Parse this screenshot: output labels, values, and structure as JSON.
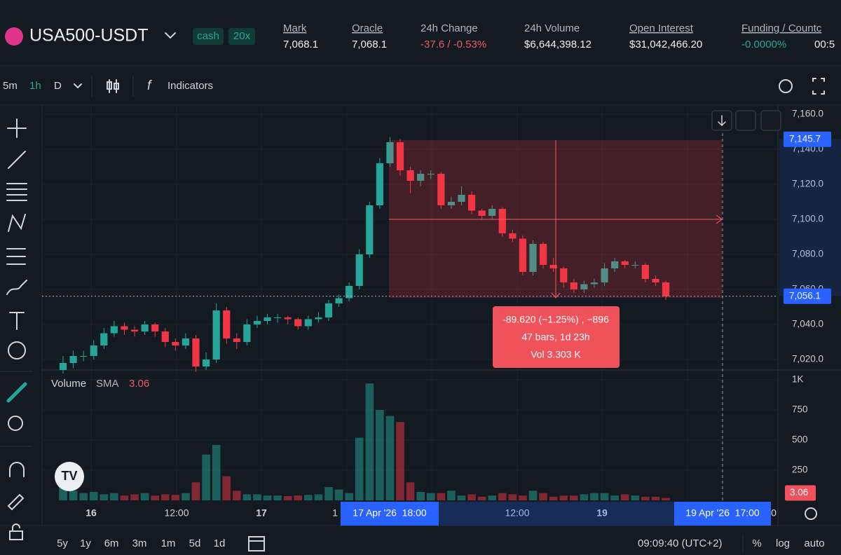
{
  "header": {
    "symbol": "USA500-USDT",
    "tags": [
      "cash",
      "20x"
    ],
    "stats": [
      {
        "label": "Mark",
        "value": "7,068.1"
      },
      {
        "label": "Oracle",
        "value": "7,068.1"
      },
      {
        "label": "24h Change",
        "value": "-37.6 / -0.53%"
      },
      {
        "label": "24h Volume",
        "value": "$6,644,398.12"
      },
      {
        "label": "Open Interest",
        "value": "$31,042,466.20"
      },
      {
        "label": "Funding / Countc",
        "value": "-0.0000%",
        "extra": "00:5"
      }
    ]
  },
  "toolbar": {
    "intervals": [
      "5m",
      "1h",
      "D"
    ],
    "indicators": "Indicators"
  },
  "chart": {
    "type": "candlestick",
    "ylim": [
      7014,
      7168
    ],
    "yticks": [
      {
        "value": 7160,
        "label": "7,160.0"
      },
      {
        "value": 7140,
        "label": "7,140.0"
      },
      {
        "value": 7120,
        "label": "7,120.0"
      },
      {
        "value": 7100,
        "label": "7,100.0"
      },
      {
        "value": 7080,
        "label": "7,080.0"
      },
      {
        "value": 7060,
        "label": "7,060.0"
      },
      {
        "value": 7040,
        "label": "7,040.0"
      },
      {
        "value": 7020,
        "label": "7,020.0"
      }
    ],
    "price_markers": [
      {
        "value": 7145.7,
        "label": "7,145.7",
        "color": "#2962ff"
      },
      {
        "value": 7056.1,
        "label": "7,056.1",
        "color": "#2962ff"
      }
    ],
    "up_color": "#26a69a",
    "down_color": "#f23645",
    "candles": [
      [
        7014,
        7022,
        7012,
        7018
      ],
      [
        7018,
        7025,
        7015,
        7022
      ],
      [
        7022,
        7025,
        7019,
        7022
      ],
      [
        7022,
        7031,
        7020,
        7028
      ],
      [
        7028,
        7038,
        7026,
        7035
      ],
      [
        7035,
        7042,
        7033,
        7039
      ],
      [
        7039,
        7041,
        7034,
        7037
      ],
      [
        7037,
        7039,
        7033,
        7036
      ],
      [
        7036,
        7042,
        7034,
        7040
      ],
      [
        7040,
        7041,
        7033,
        7036
      ],
      [
        7036,
        7038,
        7027,
        7030
      ],
      [
        7030,
        7032,
        7025,
        7028
      ],
      [
        7028,
        7035,
        7026,
        7032
      ],
      [
        7032,
        7034,
        7013,
        7016
      ],
      [
        7016,
        7024,
        7014,
        7020
      ],
      [
        7020,
        7052,
        7018,
        7048
      ],
      [
        7048,
        7050,
        7029,
        7032
      ],
      [
        7032,
        7035,
        7026,
        7030
      ],
      [
        7030,
        7043,
        7028,
        7040
      ],
      [
        7040,
        7045,
        7038,
        7042
      ],
      [
        7042,
        7046,
        7040,
        7044
      ],
      [
        7044,
        7046,
        7041,
        7044
      ],
      [
        7044,
        7045,
        7040,
        7043
      ],
      [
        7043,
        7044,
        7037,
        7039
      ],
      [
        7039,
        7045,
        7037,
        7043
      ],
      [
        7043,
        7047,
        7041,
        7044
      ],
      [
        7044,
        7054,
        7042,
        7052
      ],
      [
        7052,
        7057,
        7050,
        7055
      ],
      [
        7055,
        7064,
        7053,
        7062
      ],
      [
        7062,
        7083,
        7060,
        7080
      ],
      [
        7080,
        7110,
        7078,
        7108
      ],
      [
        7108,
        7135,
        7106,
        7132
      ],
      [
        7132,
        7147,
        7130,
        7144
      ],
      [
        7144,
        7146,
        7125,
        7128
      ],
      [
        7128,
        7130,
        7115,
        7122
      ],
      [
        7122,
        7128,
        7119,
        7126
      ],
      [
        7126,
        7128,
        7123,
        7126
      ],
      [
        7126,
        7127,
        7106,
        7108
      ],
      [
        7108,
        7113,
        7106,
        7110
      ],
      [
        7110,
        7119,
        7108,
        7114
      ],
      [
        7114,
        7116,
        7103,
        7105
      ],
      [
        7105,
        7106,
        7100,
        7102
      ],
      [
        7102,
        7108,
        7100,
        7106
      ],
      [
        7106,
        7107,
        7090,
        7092
      ],
      [
        7092,
        7094,
        7087,
        7089
      ],
      [
        7089,
        7091,
        7068,
        7070
      ],
      [
        7070,
        7088,
        7068,
        7086
      ],
      [
        7086,
        7087,
        7072,
        7074
      ],
      [
        7074,
        7078,
        7070,
        7072
      ],
      [
        7072,
        7073,
        7061,
        7064
      ],
      [
        7064,
        7066,
        7058,
        7060
      ],
      [
        7060,
        7065,
        7058,
        7063
      ],
      [
        7063,
        7066,
        7061,
        7064
      ],
      [
        7064,
        7075,
        7062,
        7072
      ],
      [
        7072,
        7078,
        7070,
        7076
      ],
      [
        7076,
        7077,
        7072,
        7074
      ],
      [
        7074,
        7076,
        7072,
        7074
      ],
      [
        7074,
        7075,
        7064,
        7066
      ],
      [
        7066,
        7068,
        7062,
        7064
      ],
      [
        7064,
        7065,
        7054,
        7056
      ]
    ],
    "volume_title": "Volume",
    "sma_label": "SMA",
    "sma_value": "3.06",
    "vlim": [
      0,
      1080
    ],
    "vticks": [
      {
        "value": 1000,
        "label": "1K"
      },
      250,
      500,
      750
    ],
    "volume_marker": {
      "value": 3.06,
      "label": "3.06"
    },
    "volumes": [
      120,
      80,
      60,
      70,
      50,
      60,
      40,
      50,
      60,
      40,
      50,
      45,
      60,
      150,
      380,
      460,
      200,
      80,
      50,
      50,
      40,
      40,
      35,
      40,
      45,
      50,
      110,
      90,
      60,
      520,
      970,
      750,
      700,
      650,
      150,
      70,
      60,
      60,
      80,
      40,
      50,
      30,
      40,
      60,
      50,
      40,
      80,
      60,
      30,
      40,
      40,
      50,
      60,
      60,
      40,
      50,
      40,
      30,
      30,
      20
    ],
    "xlabels": [
      "16",
      "12:00",
      "17",
      "1",
      "12:00",
      "19",
      "0"
    ],
    "range_start": "17 Apr '26  18:00",
    "range_end": "19 Apr '26  17:00",
    "measure": {
      "line1": "-89.620 (−1.25%) , −896",
      "line2": "47 bars, 1d 23h",
      "line3": "Vol 3.303 K"
    }
  },
  "bottom": {
    "ranges": [
      "5y",
      "1y",
      "6m",
      "3m",
      "1m",
      "5d",
      "1d"
    ],
    "time": "09:09:40 (UTC+2)",
    "options": [
      "%",
      "log",
      "auto"
    ]
  }
}
